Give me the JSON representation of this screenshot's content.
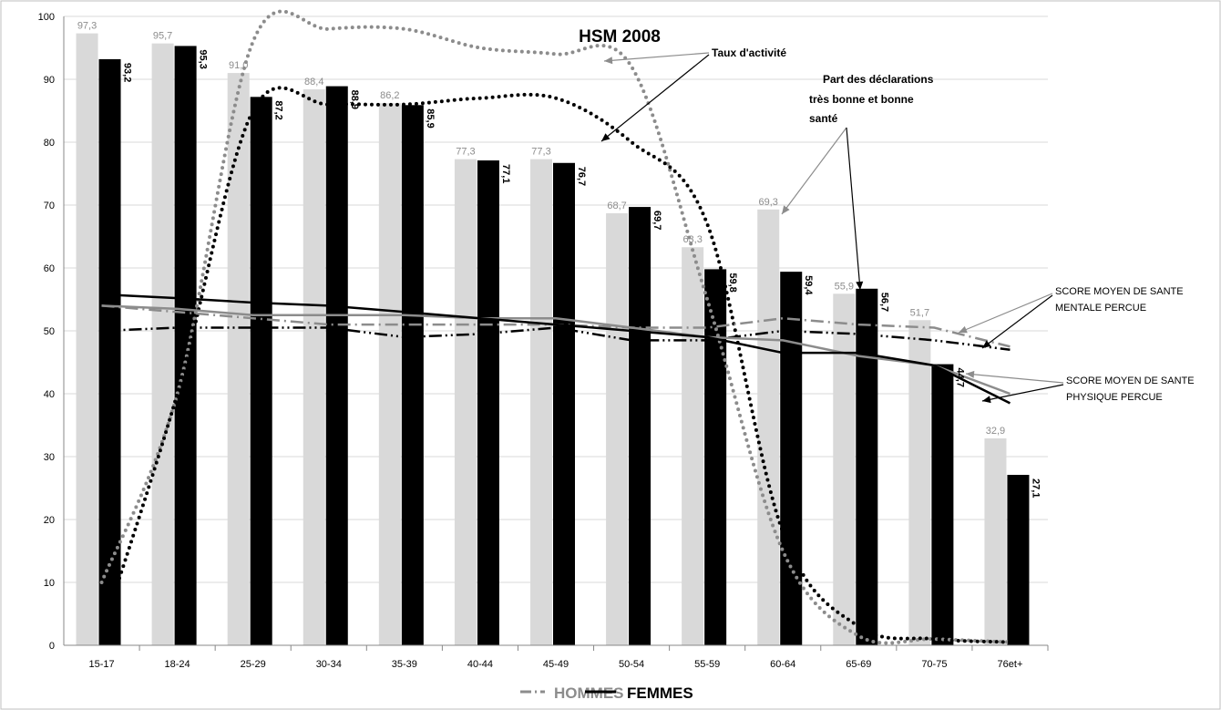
{
  "chart_data": {
    "type": "bar",
    "title": "HSM 2008",
    "categories": [
      "15-17",
      "18-24",
      "25-29",
      "30-34",
      "35-39",
      "40-44",
      "45-49",
      "50-54",
      "55-59",
      "60-64",
      "65-69",
      "70-75",
      "76et+"
    ],
    "ylim": [
      0,
      100
    ],
    "yticks": [
      0,
      10,
      20,
      30,
      40,
      50,
      60,
      70,
      80,
      90,
      100
    ],
    "grid": true,
    "bar_series": [
      {
        "name": "HOMMES",
        "color": "#d9d9d9",
        "labels": [
          "97,3",
          "95,7",
          "91,0",
          "88,4",
          "86,2",
          "77,3",
          "77,3",
          "68,7",
          "63,3",
          "69,3",
          "55,9",
          "51,7",
          "32,9"
        ],
        "values": [
          97.3,
          95.7,
          91.0,
          88.4,
          86.2,
          77.3,
          77.3,
          68.7,
          63.3,
          69.3,
          55.9,
          51.7,
          32.9
        ]
      },
      {
        "name": "FEMMES",
        "color": "#000000",
        "labels": [
          "93,2",
          "95,3",
          "87,2",
          "88,9",
          "85,9",
          "77,1",
          "76,7",
          "69,7",
          "59,8",
          "59,4",
          "56,7",
          "44,7",
          "27,1"
        ],
        "values": [
          93.2,
          95.3,
          87.2,
          88.9,
          85.9,
          77.1,
          76.7,
          69.7,
          59.8,
          59.4,
          56.7,
          44.7,
          27.1
        ]
      }
    ],
    "line_series": [
      {
        "group": "taux_activite",
        "sex": "HOMMES",
        "color": "#8c8c8c",
        "style": "dotted",
        "values": [
          10,
          40,
          96,
          98,
          98,
          95,
          94,
          92,
          55,
          15,
          1.5,
          1,
          0.5
        ]
      },
      {
        "group": "taux_activite",
        "sex": "FEMMES",
        "color": "#000000",
        "style": "dotted",
        "values": [
          2,
          40,
          85,
          86,
          86,
          87,
          87,
          80,
          67,
          18,
          3,
          1,
          0.5
        ]
      },
      {
        "group": "score_mental",
        "sex": "HOMMES",
        "color": "#8c8c8c",
        "style": "dashed",
        "values": [
          54,
          53,
          52,
          51,
          51,
          51,
          51,
          50.5,
          50.5,
          52,
          51,
          50.5,
          47.5
        ]
      },
      {
        "group": "score_mental",
        "sex": "FEMMES",
        "color": "#000000",
        "style": "dashed",
        "values": [
          50,
          50.5,
          50.5,
          50.5,
          49,
          49.5,
          50.5,
          48.5,
          48.5,
          50,
          49.5,
          48.5,
          47
        ]
      },
      {
        "group": "score_physique",
        "sex": "HOMMES",
        "color": "#8c8c8c",
        "style": "solid",
        "values": [
          54,
          53.5,
          52.5,
          52.5,
          52.5,
          52,
          52,
          50.5,
          49,
          48.5,
          46,
          44.5,
          40
        ]
      },
      {
        "group": "score_physique",
        "sex": "FEMMES",
        "color": "#000000",
        "style": "solid",
        "values": [
          55.8,
          55.2,
          54.5,
          54,
          53,
          52,
          51,
          50,
          49,
          46.5,
          46.5,
          44.5,
          38.5
        ]
      }
    ],
    "annotations": [
      {
        "text": "Taux d'activité"
      },
      {
        "lines": [
          "Part des déclarations",
          "très bonne et bonne",
          "santé"
        ]
      },
      {
        "lines": [
          "SCORE MOYEN DE SANTE",
          "MENTALE PERCUE"
        ]
      },
      {
        "lines": [
          "SCORE MOYEN DE SANTE",
          "PHYSIQUE PERCUE"
        ]
      }
    ],
    "legend": {
      "placement": "bottom",
      "items": [
        {
          "label": "HOMMES",
          "color": "#8c8c8c"
        },
        {
          "label": "FEMMES",
          "color": "#000000"
        }
      ]
    }
  }
}
